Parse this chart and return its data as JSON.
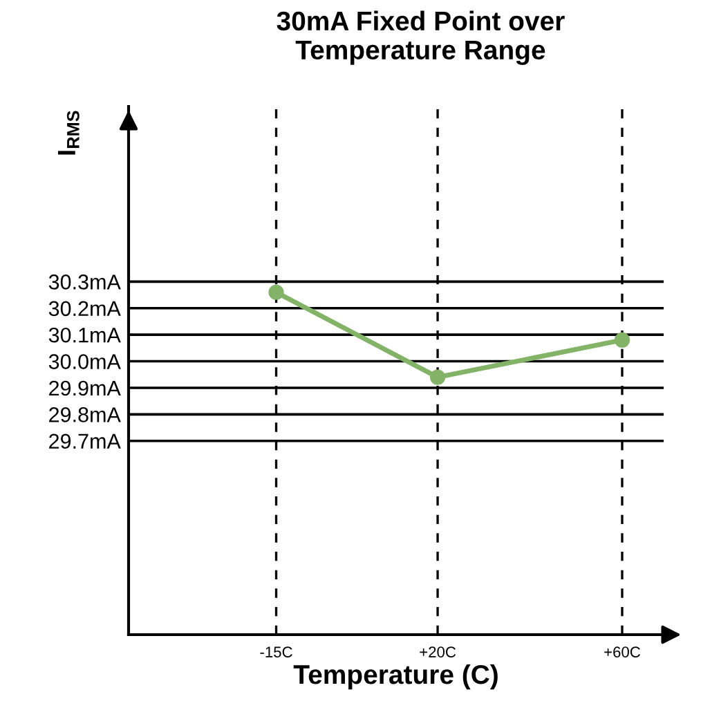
{
  "chart_data": {
    "type": "line",
    "title": "30mA Fixed Point over\nTemperature Range",
    "xlabel": "Temperature (C)",
    "ylabel": "I$_{RMS}$",
    "x": [
      -15,
      20,
      60
    ],
    "series": [
      {
        "color": "#82b366",
        "values": [
          30.26,
          29.94,
          30.08
        ]
      }
    ],
    "xlim": [
      -47,
      69
    ],
    "xticks": [
      {
        "value": -15,
        "label": "-15C"
      },
      {
        "value": 20,
        "label": "+20C"
      },
      {
        "value": 60,
        "label": "+60C"
      }
    ],
    "ylim": [
      28.97,
      30.96
    ],
    "yticks": [
      {
        "value": 29.7,
        "label": "29.7mA"
      },
      {
        "value": 29.8,
        "label": "29.8mA"
      },
      {
        "value": 29.9,
        "label": "29.9mA"
      },
      {
        "value": 30.0,
        "label": "30.0mA"
      },
      {
        "value": 30.1,
        "label": "30.1mA"
      },
      {
        "value": 30.2,
        "label": "30.2mA"
      },
      {
        "value": 30.3,
        "label": "30.3mA"
      }
    ],
    "grid": true,
    "marker": "circle",
    "line_style": "solid"
  }
}
